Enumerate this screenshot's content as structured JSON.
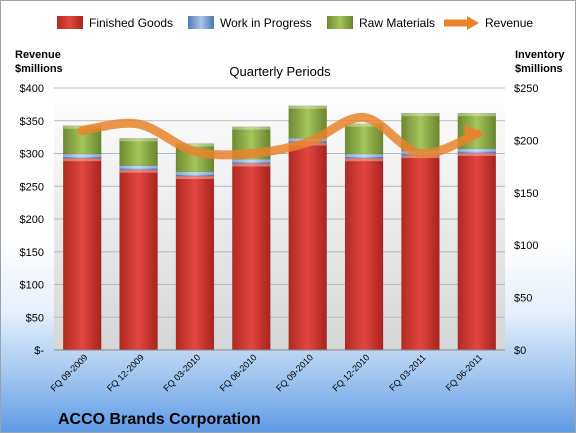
{
  "chart_data": {
    "type": "bar",
    "stacked": true,
    "subtitle": "Quarterly Periods",
    "company": "ACCO Brands Corporation",
    "left_axis_title": [
      "Revenue",
      "$millions"
    ],
    "right_axis_title": [
      "Inventory",
      "$millions"
    ],
    "categories": [
      "FQ 09-2009",
      "FQ 12-2009",
      "FQ 03-2010",
      "FQ 06-2010",
      "FQ 09-2010",
      "FQ 12-2010",
      "FQ 03-2011",
      "FQ 06-2011"
    ],
    "left_ticks": [
      "$-",
      "$50",
      "$100",
      "$150",
      "$200",
      "$250",
      "$300",
      "$350",
      "$400"
    ],
    "right_ticks": [
      "$0",
      "$50",
      "$100",
      "$150",
      "$200",
      "$250"
    ],
    "left_ylim": [
      0,
      400
    ],
    "right_ylim": [
      0,
      250
    ],
    "series": [
      {
        "name": "Finished Goods",
        "axis": "right",
        "color": "#c0392b",
        "values": [
          183,
          172,
          166,
          178,
          198,
          183,
          186,
          188
        ]
      },
      {
        "name": "Work in Progress",
        "axis": "right",
        "color": "#6f98d3",
        "values": [
          4,
          4,
          4,
          4,
          4,
          4,
          4,
          4
        ]
      },
      {
        "name": "Raw Materials",
        "axis": "right",
        "color": "#8aab45",
        "values": [
          27,
          26,
          27,
          31,
          31,
          29,
          36,
          34
        ]
      },
      {
        "name": "Revenue",
        "type": "line",
        "axis": "left",
        "color": "#e8842c",
        "values": [
          335,
          345,
          303,
          300,
          317,
          355,
          300,
          330
        ]
      }
    ],
    "legend_position": "top",
    "grid": true
  }
}
